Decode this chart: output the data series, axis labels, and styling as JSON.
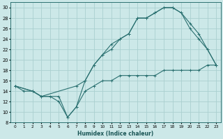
{
  "xlabel": "Humidex (Indice chaleur)",
  "bg_color": "#cce8e8",
  "grid_color": "#aad0d0",
  "line_color": "#2a7070",
  "xlim": [
    -0.5,
    23.5
  ],
  "ylim": [
    8,
    31
  ],
  "xticks": [
    0,
    1,
    2,
    3,
    4,
    5,
    6,
    7,
    8,
    9,
    10,
    11,
    12,
    13,
    14,
    15,
    16,
    17,
    18,
    19,
    20,
    21,
    22,
    23
  ],
  "yticks": [
    8,
    10,
    12,
    14,
    16,
    18,
    20,
    22,
    24,
    26,
    28,
    30
  ],
  "line1_x": [
    0,
    1,
    2,
    3,
    4,
    5,
    6,
    7,
    8,
    9,
    10,
    11,
    12,
    13,
    14,
    15,
    16,
    17,
    18,
    19,
    20,
    21,
    22,
    23
  ],
  "line1_y": [
    15,
    14,
    14,
    13,
    13,
    12,
    9,
    11,
    16,
    19,
    21,
    22,
    24,
    25,
    28,
    28,
    29,
    30,
    30,
    29,
    27,
    25,
    22,
    19
  ],
  "line2_x": [
    0,
    2,
    3,
    7,
    8,
    9,
    10,
    11,
    12,
    13,
    14,
    15,
    16,
    17,
    18,
    19,
    20,
    21,
    22,
    23
  ],
  "line2_y": [
    15,
    14,
    13,
    15,
    16,
    19,
    21,
    23,
    24,
    25,
    28,
    28,
    29,
    30,
    30,
    29,
    26,
    24,
    22,
    19
  ],
  "line3_x": [
    0,
    2,
    3,
    5,
    6,
    7,
    8,
    9,
    10,
    11,
    12,
    13,
    14,
    15,
    16,
    17,
    18,
    19,
    20,
    21,
    22,
    23
  ],
  "line3_y": [
    15,
    14,
    13,
    13,
    9,
    11,
    14,
    15,
    16,
    16,
    17,
    17,
    17,
    17,
    17,
    18,
    18,
    18,
    18,
    18,
    19,
    19
  ]
}
